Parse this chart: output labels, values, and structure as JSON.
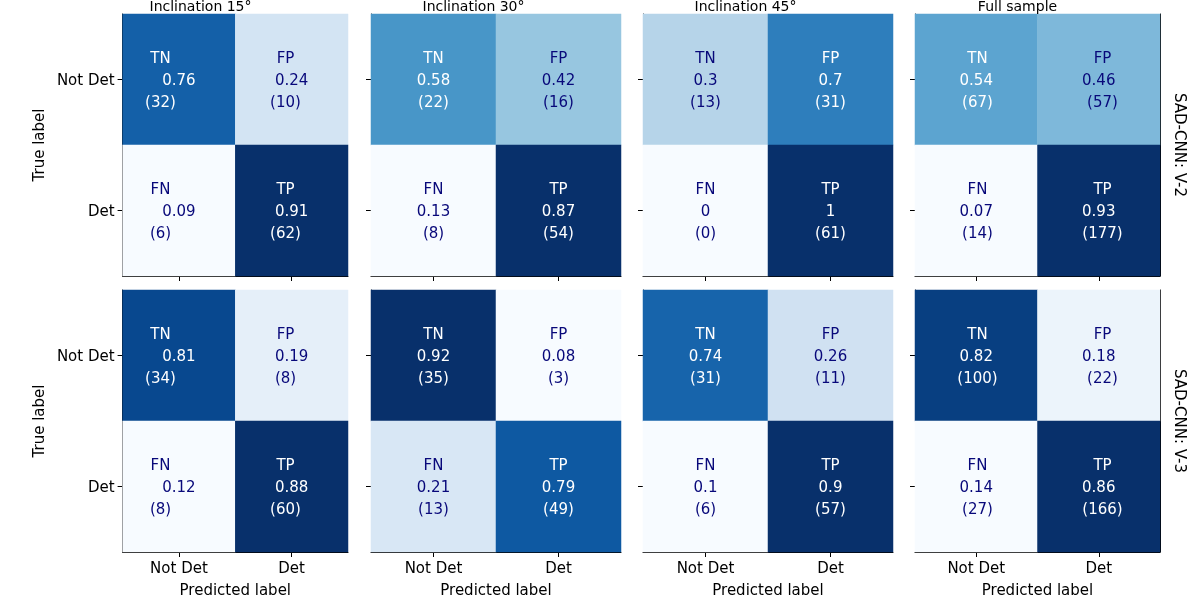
{
  "chart_data": [
    {
      "type": "heatmap",
      "title": "Inclination 15°",
      "ylabel": "True label",
      "categories": [
        null,
        null
      ],
      "y_categories": [
        "Not Det",
        "Det"
      ],
      "cells": [
        [
          0.76,
          0.24
        ],
        [
          0.09,
          0.91
        ]
      ],
      "data_labels": true,
      "annotations": [
        "TN",
        "(32)",
        "FP",
        "(10)",
        "FN",
        "(6)",
        "TP",
        "(62)"
      ],
      "tick_labels": "y"
    },
    {
      "type": "heatmap",
      "title": "Inclination 30°",
      "categories": [
        null,
        null
      ],
      "y_categories": [
        null,
        null
      ],
      "cells": [
        [
          0.58,
          0.42
        ],
        [
          0.13,
          0.87
        ]
      ],
      "data_labels": true,
      "annotations": [
        "TN",
        "(22)",
        "FP",
        "(16)",
        "FN",
        "(8)",
        "TP",
        "(54)"
      ],
      "tick_labels": false
    },
    {
      "type": "heatmap",
      "title": "Inclination 45°",
      "categories": [
        null,
        null
      ],
      "y_categories": [
        null,
        null
      ],
      "cells": [
        [
          0.3,
          0.7
        ],
        [
          0,
          1
        ]
      ],
      "data_labels": true,
      "annotations": [
        "TN",
        "(13)",
        "FP",
        "(31)",
        "FN",
        "(0)",
        "TP",
        "(61)"
      ],
      "tick_labels": false
    },
    {
      "type": "heatmap",
      "title": "Full sample",
      "y2label": "SAD-CNN: V-2",
      "categories": [
        null,
        null
      ],
      "y_categories": [
        null,
        null
      ],
      "cells": [
        [
          0.54,
          0.46
        ],
        [
          0.07,
          0.93
        ]
      ],
      "data_labels": true,
      "annotations": [
        "TN",
        "(67)",
        "FP",
        "(57)",
        "FN",
        "(14)",
        "TP",
        "(177)"
      ],
      "tick_labels": false
    },
    {
      "type": "heatmap",
      "xlabel": "Predicted label",
      "ylabel": "True label",
      "categories": [
        "Not Det",
        "Det"
      ],
      "y_categories": [
        "Not Det",
        "Det"
      ],
      "cells": [
        [
          0.81,
          0.19
        ],
        [
          0.12,
          0.88
        ]
      ],
      "data_labels": true,
      "annotations": [
        "TN",
        "(34)",
        "FP",
        "(8)",
        "FN",
        "(8)",
        "TP",
        "(60)"
      ]
    },
    {
      "type": "heatmap",
      "xlabel": "Predicted label",
      "categories": [
        "Not Det",
        "Det"
      ],
      "y_categories": [
        null,
        null
      ],
      "cells": [
        [
          0.92,
          0.08
        ],
        [
          0.21,
          0.79
        ]
      ],
      "data_labels": true,
      "annotations": [
        "TN",
        "(35)",
        "FP",
        "(3)",
        "FN",
        "(13)",
        "TP",
        "(49)"
      ],
      "tick_labels": "x"
    },
    {
      "type": "heatmap",
      "xlabel": "Predicted label",
      "categories": [
        "Not Det",
        "Det"
      ],
      "y_categories": [
        null,
        null
      ],
      "cells": [
        [
          0.74,
          0.26
        ],
        [
          0.1,
          0.9
        ]
      ],
      "data_labels": true,
      "annotations": [
        "TN",
        "(31)",
        "FP",
        "(11)",
        "FN",
        "(6)",
        "TP",
        "(57)"
      ],
      "tick_labels": "x"
    },
    {
      "type": "heatmap",
      "xlabel": "Predicted label",
      "y2label": "SAD-CNN: V-3",
      "categories": [
        "Not Det",
        "Det"
      ],
      "y_categories": [
        null,
        null
      ],
      "cells": [
        [
          0.82,
          0.18
        ],
        [
          0.14,
          0.86
        ]
      ],
      "data_labels": true,
      "annotations": [
        "TN",
        "(100)",
        "FP",
        "(22)",
        "FN",
        "(27)",
        "TP",
        "(166)"
      ],
      "tick_labels": "x"
    }
  ]
}
